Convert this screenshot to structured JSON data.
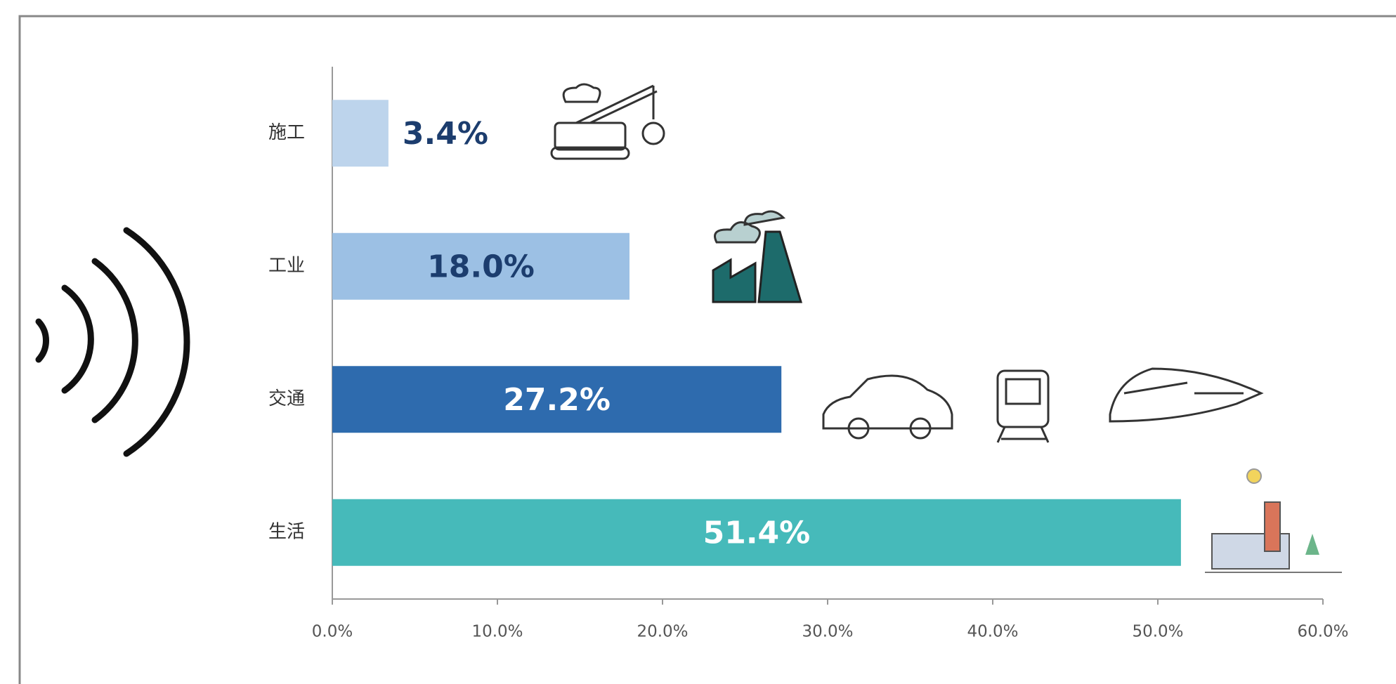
{
  "chart_data": {
    "type": "hbar",
    "categories": [
      "施工",
      "工业",
      "交通",
      "生活"
    ],
    "values": [
      3.4,
      18.0,
      27.2,
      51.4
    ],
    "value_labels": [
      "3.4%",
      "18.0%",
      "27.2%",
      "51.4%"
    ],
    "colors": [
      "#bdd4ec",
      "#9cc0e4",
      "#2e6bae",
      "#46baba"
    ],
    "value_label_colors": [
      "#1c3d6e",
      "#1c3d6e",
      "#ffffff",
      "#ffffff"
    ],
    "xlim": [
      0,
      60
    ],
    "xticks": [
      {
        "value": 0,
        "label": "0.0%"
      },
      {
        "value": 10,
        "label": "10.0%"
      },
      {
        "value": 20,
        "label": "20.0%"
      },
      {
        "value": 30,
        "label": "30.0%"
      },
      {
        "value": 40,
        "label": "40.0%"
      },
      {
        "value": 50,
        "label": "50.0%"
      },
      {
        "value": 60,
        "label": "60.0%"
      }
    ]
  }
}
